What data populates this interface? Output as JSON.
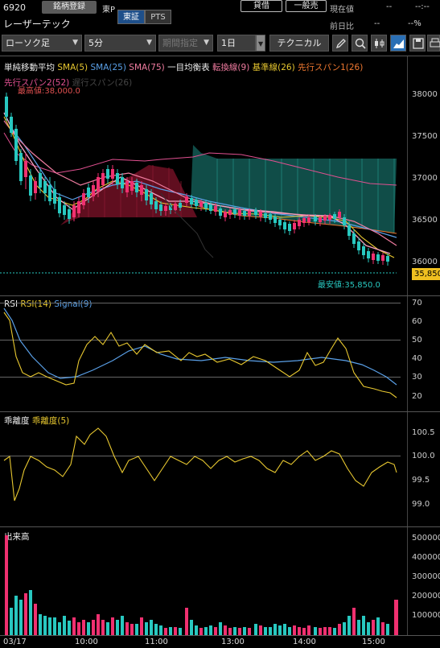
{
  "header": {
    "code": "6920",
    "register_button": "銘柄登録",
    "market_label": "東P",
    "market_tse": "東証",
    "market_pts": "PTS",
    "name": "レーザーテック",
    "lend_button": "貸借",
    "general_button": "一般売",
    "current_price_label": "現在値",
    "current_price_value": "--",
    "current_time": "--:--",
    "prev_diff_label": "前日比",
    "prev_diff_value": "--",
    "prev_diff_pct": "--%"
  },
  "toolbar": {
    "chart_type": "ローソク足",
    "interval": "5分",
    "period": "期間指定",
    "range": "1日",
    "technical": "テクニカル"
  },
  "main_legend": {
    "title": "単純移動平均",
    "sma5": "SMA(5)",
    "sma25": "SMA(25)",
    "sma75": "SMA(75)",
    "ichimoku": "一目均衡表",
    "tenkan": "転換線(9)",
    "kijun": "基準線(26)",
    "senkou1": "先行スパン1(26)",
    "senkou2": "先行スパン2(52)",
    "chikou": "遅行スパン(26)",
    "colors": {
      "sma5": "#e8c830",
      "sma25": "#5aa0e8",
      "sma75": "#f07ca0",
      "tenkan": "#f07ca0",
      "kijun": "#e8c830",
      "senkou1": "#f07830",
      "senkou2": "#e05090"
    }
  },
  "main_axis": [
    "38000",
    "37500",
    "37000",
    "36500",
    "36000"
  ],
  "high_label": "最高値:38,000.0",
  "low_label": "最安値:35,850.0",
  "last_price_tag": "35,850",
  "rsi": {
    "title": "RSI",
    "rsi_label": "RSI(14)",
    "signal_label": "Signal(9)",
    "axis": [
      "70",
      "60",
      "50",
      "40",
      "30",
      "20"
    ]
  },
  "deviation": {
    "title": "乖離度",
    "label": "乖離度(5)",
    "axis": [
      "100.5",
      "100.0",
      "99.5",
      "99.0"
    ]
  },
  "volume": {
    "title": "出来高",
    "axis": [
      "500000",
      "400000",
      "300000",
      "200000",
      "100000"
    ]
  },
  "time_axis": [
    "03/17",
    "10:00",
    "11:00",
    "13:00",
    "14:00",
    "15:00"
  ]
}
